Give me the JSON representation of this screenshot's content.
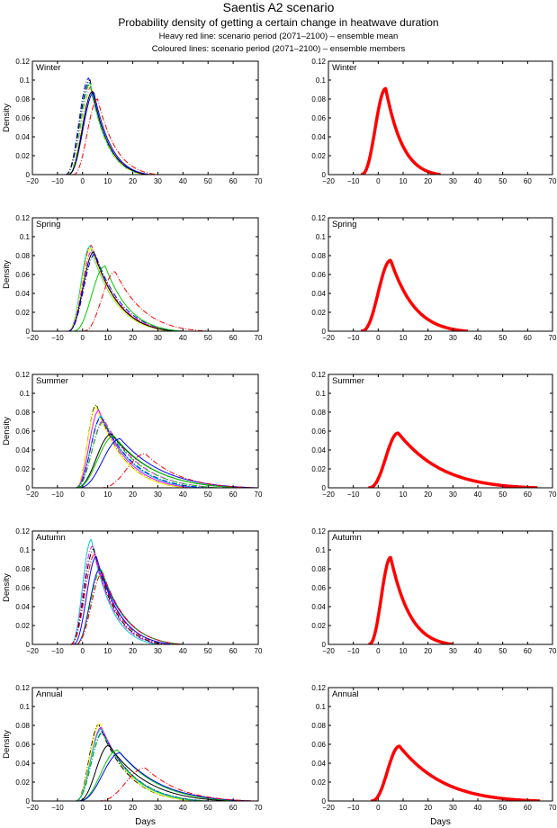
{
  "figure": {
    "title": "Saentis A2 scenario",
    "subtitle": "Probability density of getting a certain change in heatwave duration",
    "note_mean": "Heavy red line: scenario period (2071–2100) – ensemble mean",
    "note_members": "Coloured lines: scenario period (2071–2100) – ensemble members"
  },
  "chart_data": {
    "type": "line",
    "layout": "5 rows x 2 columns; left column ensemble members, right column ensemble mean",
    "xlabel": "Days",
    "ylabel": "Density",
    "xlim": [
      -20,
      70
    ],
    "ylim": [
      0,
      0.12
    ],
    "xticks": [
      -20,
      -10,
      0,
      10,
      20,
      30,
      40,
      50,
      60,
      70
    ],
    "xtick_labels": [
      "−20",
      "−10",
      "0",
      "10",
      "20",
      "30",
      "40",
      "50",
      "60",
      "70"
    ],
    "yticks": [
      0,
      0.02,
      0.04,
      0.06,
      0.08,
      0.1,
      0.12
    ],
    "ytick_labels": [
      "0",
      "0.02",
      "0.04",
      "0.06",
      "0.08",
      "0.1",
      "0.12"
    ],
    "member_colors": [
      "#0000ff",
      "#000000",
      "#00cc00",
      "#ff00ff",
      "#00cccc",
      "#ffff00",
      "#ff0000"
    ],
    "mean_color": "#ff0000",
    "panels": [
      {
        "season": "Winter",
        "members": [
          {
            "color": "#0000ff",
            "mode": 2.5,
            "peak": 0.102,
            "start": -7,
            "end": 26,
            "style": "dashdot"
          },
          {
            "color": "#000000",
            "mode": 3.0,
            "peak": 0.1,
            "start": -7,
            "end": 25,
            "style": "dashdot"
          },
          {
            "color": "#00cc00",
            "mode": 3.0,
            "peak": 0.096,
            "start": -6,
            "end": 25,
            "style": "dashdot"
          },
          {
            "color": "#ff00ff",
            "mode": 3.5,
            "peak": 0.093,
            "start": -6,
            "end": 26,
            "style": "dashdot"
          },
          {
            "color": "#00cccc",
            "mode": 3.0,
            "peak": 0.098,
            "start": -6,
            "end": 25,
            "style": "dashdot"
          },
          {
            "color": "#ffff00",
            "mode": 3.5,
            "peak": 0.095,
            "start": -6,
            "end": 25,
            "style": "dashdot"
          },
          {
            "color": "#0000ff",
            "mode": 4.5,
            "peak": 0.087,
            "start": -6,
            "end": 27,
            "style": "solid"
          },
          {
            "color": "#000000",
            "mode": 4.0,
            "peak": 0.088,
            "start": -6,
            "end": 26,
            "style": "solid"
          },
          {
            "color": "#ff0000",
            "mode": 6.0,
            "peak": 0.08,
            "start": -4,
            "end": 30,
            "style": "dashdot"
          }
        ],
        "mean": {
          "mode": 3.0,
          "peak": 0.091,
          "start": -7,
          "end": 25
        }
      },
      {
        "season": "Spring",
        "members": [
          {
            "color": "#ff0000",
            "mode": 3.5,
            "peak": 0.091,
            "start": -6,
            "end": 38,
            "style": "dashdot"
          },
          {
            "color": "#00cccc",
            "mode": 3.0,
            "peak": 0.09,
            "start": -6,
            "end": 36,
            "style": "solid"
          },
          {
            "color": "#ffff00",
            "mode": 3.5,
            "peak": 0.088,
            "start": -6,
            "end": 36,
            "style": "solid"
          },
          {
            "color": "#ff00ff",
            "mode": 4.0,
            "peak": 0.086,
            "start": -6,
            "end": 38,
            "style": "dashdot"
          },
          {
            "color": "#000000",
            "mode": 4.5,
            "peak": 0.084,
            "start": -6,
            "end": 37,
            "style": "solid"
          },
          {
            "color": "#0000ff",
            "mode": 5.0,
            "peak": 0.082,
            "start": -6,
            "end": 40,
            "style": "dashdot"
          },
          {
            "color": "#00cc00",
            "mode": 9.0,
            "peak": 0.069,
            "start": -4,
            "end": 40,
            "style": "solid"
          },
          {
            "color": "#ff0000",
            "mode": 13.0,
            "peak": 0.063,
            "start": 0,
            "end": 50,
            "style": "dashdot"
          }
        ],
        "mean": {
          "mode": 5.0,
          "peak": 0.075,
          "start": -7,
          "end": 36
        }
      },
      {
        "season": "Summer",
        "members": [
          {
            "color": "#000000",
            "mode": 5.5,
            "peak": 0.088,
            "start": -3,
            "end": 42,
            "style": "dashdot"
          },
          {
            "color": "#ffff00",
            "mode": 5.5,
            "peak": 0.086,
            "start": -3,
            "end": 42,
            "style": "solid"
          },
          {
            "color": "#ff00ff",
            "mode": 6.5,
            "peak": 0.082,
            "start": -3,
            "end": 45,
            "style": "solid"
          },
          {
            "color": "#00cccc",
            "mode": 7.5,
            "peak": 0.076,
            "start": -3,
            "end": 48,
            "style": "solid"
          },
          {
            "color": "#0000ff",
            "mode": 7.5,
            "peak": 0.075,
            "start": -3,
            "end": 50,
            "style": "dashdot"
          },
          {
            "color": "#ff00ff",
            "mode": 8.5,
            "peak": 0.072,
            "start": -3,
            "end": 55,
            "style": "dashdot"
          },
          {
            "color": "#00cc00",
            "mode": 8.5,
            "peak": 0.07,
            "start": -3,
            "end": 55,
            "style": "dashdot"
          },
          {
            "color": "#000000",
            "mode": 11.5,
            "peak": 0.057,
            "start": -3,
            "end": 65,
            "style": "solid"
          },
          {
            "color": "#00cc00",
            "mode": 12.5,
            "peak": 0.055,
            "start": -3,
            "end": 65,
            "style": "solid"
          },
          {
            "color": "#0000ff",
            "mode": 15.0,
            "peak": 0.052,
            "start": -2,
            "end": 70,
            "style": "solid"
          },
          {
            "color": "#ff0000",
            "mode": 25.0,
            "peak": 0.036,
            "start": 7,
            "end": 70,
            "style": "dashdot"
          }
        ],
        "mean": {
          "mode": 8.0,
          "peak": 0.058,
          "start": -4,
          "end": 64
        }
      },
      {
        "season": "Autumn",
        "members": [
          {
            "color": "#00cccc",
            "mode": 3.5,
            "peak": 0.111,
            "start": -5,
            "end": 30,
            "style": "solid"
          },
          {
            "color": "#ff00ff",
            "mode": 4.0,
            "peak": 0.104,
            "start": -5,
            "end": 32,
            "style": "dashdot"
          },
          {
            "color": "#000000",
            "mode": 4.5,
            "peak": 0.101,
            "start": -5,
            "end": 33,
            "style": "dashdot"
          },
          {
            "color": "#ff0000",
            "mode": 5.0,
            "peak": 0.096,
            "start": -5,
            "end": 35,
            "style": "dashdot"
          },
          {
            "color": "#0000ff",
            "mode": 5.5,
            "peak": 0.093,
            "start": -4,
            "end": 36,
            "style": "solid"
          },
          {
            "color": "#0000ff",
            "mode": 7.0,
            "peak": 0.08,
            "start": -3,
            "end": 40,
            "style": "solid"
          },
          {
            "color": "#00cc00",
            "mode": 7.5,
            "peak": 0.079,
            "start": -3,
            "end": 40,
            "style": "dashdot"
          },
          {
            "color": "#ff0000",
            "mode": 8.0,
            "peak": 0.076,
            "start": -3,
            "end": 40,
            "style": "dashdot"
          }
        ],
        "mean": {
          "mode": 5.0,
          "peak": 0.092,
          "start": -4,
          "end": 30
        }
      },
      {
        "season": "Annual",
        "members": [
          {
            "color": "#000000",
            "mode": 6.5,
            "peak": 0.081,
            "start": -3,
            "end": 45,
            "style": "dashdot"
          },
          {
            "color": "#ffff00",
            "mode": 7.0,
            "peak": 0.082,
            "start": -3,
            "end": 45,
            "style": "solid"
          },
          {
            "color": "#ff00ff",
            "mode": 7.5,
            "peak": 0.078,
            "start": -3,
            "end": 48,
            "style": "solid"
          },
          {
            "color": "#00cccc",
            "mode": 7.5,
            "peak": 0.076,
            "start": -3,
            "end": 48,
            "style": "solid"
          },
          {
            "color": "#0000ff",
            "mode": 8.0,
            "peak": 0.073,
            "start": -3,
            "end": 50,
            "style": "dashdot"
          },
          {
            "color": "#00cc00",
            "mode": 8.0,
            "peak": 0.072,
            "start": -3,
            "end": 50,
            "style": "dashdot"
          },
          {
            "color": "#000000",
            "mode": 10.5,
            "peak": 0.059,
            "start": -2,
            "end": 60,
            "style": "solid"
          },
          {
            "color": "#00cc00",
            "mode": 14.0,
            "peak": 0.054,
            "start": -2,
            "end": 65,
            "style": "solid"
          },
          {
            "color": "#0000ff",
            "mode": 15.0,
            "peak": 0.051,
            "start": -2,
            "end": 68,
            "style": "solid"
          },
          {
            "color": "#ff0000",
            "mode": 25.0,
            "peak": 0.035,
            "start": 6,
            "end": 70,
            "style": "dashdot"
          }
        ],
        "mean": {
          "mode": 8.5,
          "peak": 0.058,
          "start": -3,
          "end": 65
        }
      }
    ]
  }
}
